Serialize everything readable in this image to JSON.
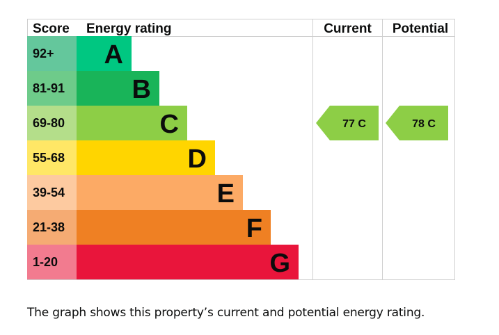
{
  "chart_data": {
    "type": "energy-rating",
    "headers": {
      "score": "Score",
      "rating": "Energy rating",
      "current": "Current",
      "potential": "Potential"
    },
    "bands": [
      {
        "letter": "A",
        "score": "92+",
        "color": "#008054",
        "score_bg": "#64c79c",
        "bar_color": "#00c781"
      },
      {
        "letter": "B",
        "score": "81-91",
        "color": "#19b459",
        "score_bg": "#6ecb8a",
        "bar_color": "#19b459"
      },
      {
        "letter": "C",
        "score": "69-80",
        "color": "#8dce46",
        "score_bg": "#b4de8a",
        "bar_color": "#8dce46"
      },
      {
        "letter": "D",
        "score": "55-68",
        "color": "#ffd500",
        "score_bg": "#ffe766",
        "bar_color": "#ffd500"
      },
      {
        "letter": "E",
        "score": "39-54",
        "color": "#fcaa65",
        "score_bg": "#fdcaa0",
        "bar_color": "#fcaa65"
      },
      {
        "letter": "F",
        "score": "21-38",
        "color": "#ef8023",
        "score_bg": "#f5ab73",
        "bar_color": "#ef8023"
      },
      {
        "letter": "G",
        "score": "1-20",
        "color": "#e9153b",
        "score_bg": "#f27b8f",
        "bar_color": "#e9153b"
      }
    ],
    "current": {
      "value": 77,
      "band": "C",
      "label": "77 C",
      "color": "#8dce46"
    },
    "potential": {
      "value": 78,
      "band": "C",
      "label": "78 C",
      "color": "#8dce46"
    }
  },
  "caption": "The graph shows this property’s current and potential energy rating."
}
